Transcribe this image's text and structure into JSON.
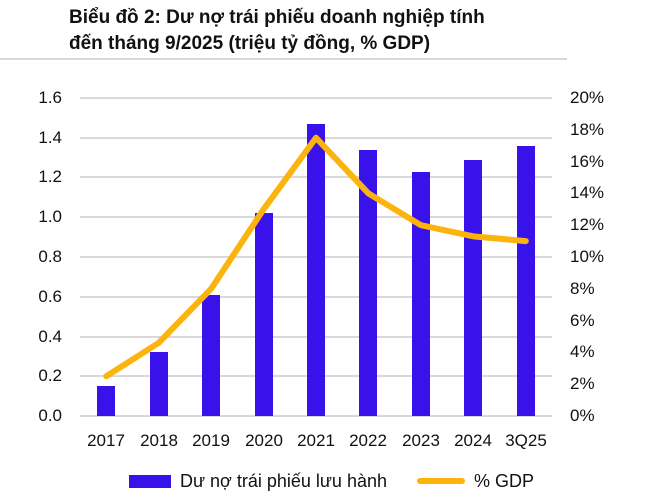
{
  "title": {
    "line1": "Biểu đồ 2: Dư nợ trái phiếu doanh nghiệp tính",
    "line2": "đến tháng 9/2025 (triệu tỷ đồng, % GDP)"
  },
  "chart_data": {
    "type": "bar",
    "subtype": "bar+line combo, dual y-axis",
    "categories": [
      "2017",
      "2018",
      "2019",
      "2020",
      "2021",
      "2022",
      "2023",
      "2024",
      "3Q25"
    ],
    "series": [
      {
        "name": "Dư nợ trái phiếu lưu hành",
        "type": "bar",
        "axis": "left",
        "values": [
          0.15,
          0.32,
          0.61,
          1.02,
          1.47,
          1.34,
          1.23,
          1.29,
          1.36
        ],
        "color": "#3911EB"
      },
      {
        "name": "% GDP",
        "type": "line",
        "axis": "right",
        "values": [
          2.5,
          4.6,
          8,
          13,
          17.5,
          14,
          12,
          11.3,
          11
        ],
        "color": "#FBB40E"
      }
    ],
    "left_axis": {
      "min": 0,
      "max": 1.6,
      "step": 0.2,
      "tick_labels": [
        "0.0",
        "0.2",
        "0.4",
        "0.6",
        "0.8",
        "1.0",
        "1.2",
        "1.4",
        "1.6"
      ]
    },
    "right_axis": {
      "min": 0,
      "max": 20,
      "step": 2,
      "tick_labels": [
        "0%",
        "2%",
        "4%",
        "6%",
        "8%",
        "10%",
        "12%",
        "14%",
        "16%",
        "18%",
        "20%"
      ]
    },
    "grid": true,
    "legend_position": "bottom",
    "title": "Biểu đồ 2: Dư nợ trái phiếu doanh nghiệp tính đến tháng 9/2025 (triệu tỷ đồng, % GDP)"
  },
  "legend": {
    "bar_label": "Dư nợ trái phiếu lưu hành",
    "line_label": "% GDP"
  },
  "colors": {
    "bar": "#3911EB",
    "line": "#FBB40E",
    "grid": "#D9D9D9",
    "separator": "#D9D9D9",
    "text": "#111111"
  }
}
